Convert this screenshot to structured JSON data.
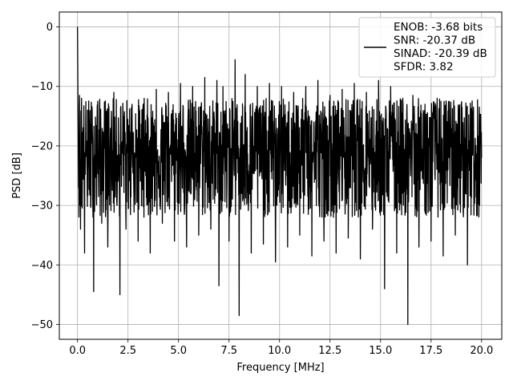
{
  "chart_data": {
    "type": "line",
    "title": "",
    "xlabel": "Frequency [MHz]",
    "ylabel": "PSD [dB]",
    "xlim": [
      -0.9,
      21.0
    ],
    "ylim": [
      -52.5,
      2.5
    ],
    "xticks": [
      0.0,
      2.5,
      5.0,
      7.5,
      10.0,
      12.5,
      15.0,
      17.5,
      20.0
    ],
    "xtick_labels": [
      "0.0",
      "2.5",
      "5.0",
      "7.5",
      "10.0",
      "12.5",
      "15.0",
      "17.5",
      "20.0"
    ],
    "yticks": [
      0,
      -10,
      -20,
      -30,
      -40,
      -50
    ],
    "ytick_labels": [
      "0",
      "−10",
      "−20",
      "−30",
      "−40",
      "−50"
    ],
    "grid": true,
    "legend_position": "upper-right",
    "series": [
      {
        "color": "#000000",
        "description": "dense noisy power spectral density trace from 0 to 20 MHz, peak 0 dB at DC, floor around -20 dB",
        "x": [
          0.0,
          0.05,
          0.1,
          0.15,
          0.2,
          0.35,
          0.5,
          0.65,
          0.8,
          1.0,
          1.2,
          1.5,
          1.8,
          2.1,
          2.4,
          2.7,
          3.0,
          3.3,
          3.6,
          3.9,
          4.2,
          4.5,
          4.8,
          5.1,
          5.4,
          5.7,
          6.0,
          6.3,
          6.6,
          6.9,
          7.0,
          7.2,
          7.5,
          7.8,
          8.0,
          8.3,
          8.6,
          8.9,
          9.2,
          9.5,
          9.8,
          10.1,
          10.4,
          10.7,
          11.0,
          11.3,
          11.6,
          11.9,
          12.2,
          12.5,
          12.8,
          13.1,
          13.4,
          13.7,
          14.0,
          14.3,
          14.6,
          14.9,
          15.2,
          15.5,
          15.8,
          16.1,
          16.35,
          16.6,
          16.9,
          17.2,
          17.5,
          17.8,
          18.1,
          18.4,
          18.7,
          19.0,
          19.3,
          19.6,
          19.9,
          20.0
        ],
        "y": [
          0.0,
          -27.0,
          -11.5,
          -34.0,
          -12.0,
          -38.0,
          -14.0,
          -30.0,
          -44.5,
          -12.5,
          -33.0,
          -37.0,
          -11.0,
          -45.0,
          -34.0,
          -13.0,
          -36.0,
          -12.0,
          -38.0,
          -10.5,
          -33.0,
          -11.0,
          -36.0,
          -9.5,
          -37.0,
          -10.0,
          -35.0,
          -8.5,
          -34.0,
          -9.0,
          -43.5,
          -10.0,
          -36.0,
          -5.5,
          -48.5,
          -8.0,
          -38.0,
          -10.0,
          -36.5,
          -9.5,
          -39.5,
          -10.0,
          -37.0,
          -11.0,
          -35.0,
          -10.0,
          -38.5,
          -9.0,
          -36.0,
          -11.5,
          -38.0,
          -10.5,
          -35.5,
          -9.5,
          -39.0,
          -11.0,
          -34.0,
          -9.0,
          -44.0,
          -10.0,
          -38.0,
          -12.0,
          -50.0,
          -11.5,
          -37.0,
          -13.0,
          -36.0,
          -12.0,
          -38.5,
          -12.5,
          -35.0,
          -13.0,
          -40.0,
          -13.5,
          -30.0,
          -22.0
        ]
      }
    ],
    "legend": {
      "lines": [
        "ENOB: -3.68 bits",
        "SNR: -20.37 dB",
        "SINAD: -20.39 dB",
        "SFDR: 3.82"
      ]
    }
  }
}
